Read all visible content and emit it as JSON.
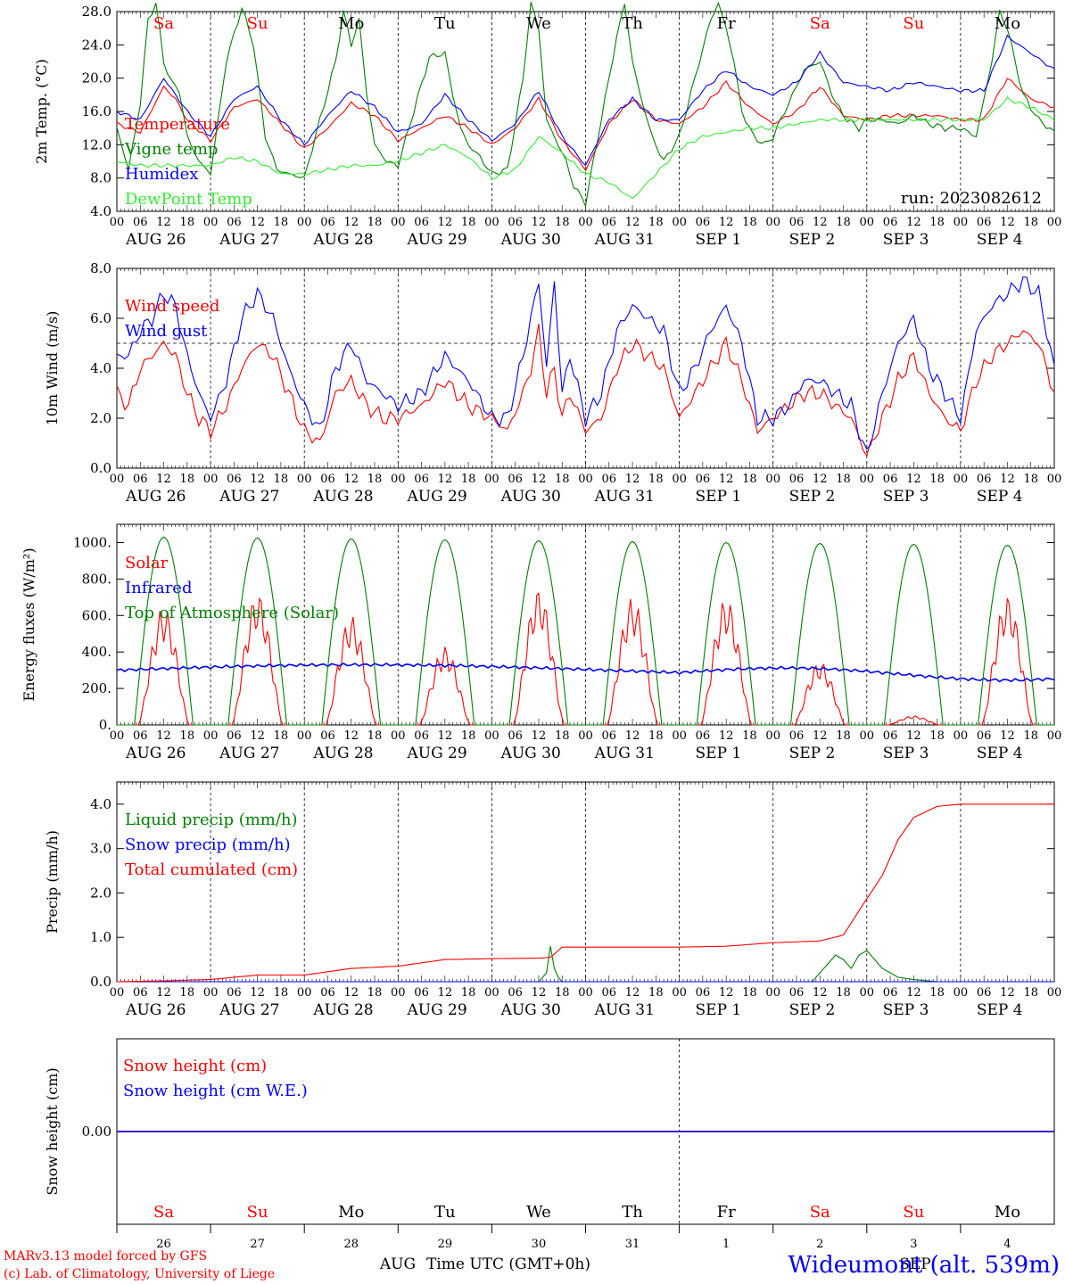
{
  "chart_data": [
    {
      "type": "line",
      "ylabel": "2m Temp. (°C)",
      "ylim": [
        4.0,
        28.0
      ],
      "yticks": [
        "28.0",
        "24.0",
        "20.0",
        "16.0",
        "12.0",
        "8.0",
        "4.0"
      ],
      "annotation": "run: 2023082612",
      "day_names": [
        "Sa",
        "Su",
        "Mo",
        "Tu",
        "We",
        "Th",
        "Fr",
        "Sa",
        "Su",
        "Mo"
      ],
      "series": [
        {
          "name": "Temperature",
          "color": "#ff0000",
          "x": [
            0,
            6,
            12,
            15,
            18,
            24,
            30,
            36,
            42,
            48,
            54,
            60,
            66,
            72,
            78,
            84,
            90,
            96,
            102,
            108,
            114,
            120,
            126,
            132,
            138,
            144,
            150,
            156,
            162,
            168,
            174,
            180,
            186,
            192,
            198,
            204,
            210,
            216,
            222,
            228,
            234,
            240
          ],
          "y": [
            14.5,
            13.5,
            19.0,
            17.5,
            15.0,
            12.5,
            16.5,
            17.5,
            14.5,
            11.5,
            14.0,
            17.0,
            15.5,
            12.5,
            14.0,
            15.5,
            14.0,
            12.0,
            14.0,
            17.5,
            12.5,
            9.0,
            14.5,
            17.5,
            15.0,
            14.5,
            16.5,
            19.5,
            16.5,
            14.5,
            16.0,
            19.0,
            15.5,
            15.0,
            15.5,
            15.5,
            15.5,
            15.0,
            15.0,
            20.0,
            17.5,
            16.5
          ]
        },
        {
          "name": "Vigne temp",
          "color": "#008000",
          "x": [
            0,
            3,
            6,
            8,
            10,
            12,
            14,
            16,
            18,
            21,
            24,
            28,
            32,
            35,
            38,
            41,
            44,
            48,
            52,
            56,
            58,
            60,
            62,
            64,
            66,
            69,
            72,
            76,
            80,
            84,
            86,
            88,
            90,
            93,
            96,
            100,
            104,
            106,
            108,
            110,
            112,
            115,
            117,
            120,
            124,
            128,
            130,
            132,
            134,
            137,
            140,
            144,
            148,
            152,
            154,
            156,
            158,
            160,
            163,
            166,
            168,
            172,
            176,
            180,
            184,
            187,
            190,
            192,
            196,
            200,
            204,
            208,
            212,
            216,
            220,
            224,
            226,
            228,
            232,
            236,
            240
          ],
          "y": [
            14.0,
            9.0,
            17.0,
            27.0,
            29.0,
            22.0,
            19.5,
            18.5,
            13.0,
            10.0,
            8.5,
            22.0,
            28.5,
            24.0,
            13.0,
            9.0,
            8.5,
            8.0,
            15.0,
            22.0,
            28.0,
            24.0,
            27.0,
            18.0,
            12.0,
            10.0,
            9.5,
            16.0,
            22.5,
            23.0,
            18.0,
            14.0,
            12.0,
            10.5,
            8.5,
            9.0,
            20.0,
            29.0,
            26.0,
            15.0,
            13.0,
            10.0,
            7.0,
            5.0,
            15.0,
            25.0,
            29.0,
            22.0,
            18.0,
            13.0,
            10.0,
            13.0,
            20.0,
            27.0,
            29.0,
            26.0,
            22.0,
            16.0,
            13.0,
            12.0,
            13.0,
            17.0,
            21.0,
            22.0,
            17.0,
            15.0,
            14.0,
            15.0,
            15.0,
            14.5,
            15.5,
            14.5,
            14.0,
            14.0,
            13.0,
            22.0,
            28.0,
            26.0,
            18.0,
            15.0,
            13.5
          ]
        },
        {
          "name": "Humidex",
          "color": "#0000ff",
          "x": [
            0,
            6,
            12,
            15,
            18,
            24,
            30,
            36,
            42,
            48,
            54,
            60,
            66,
            72,
            78,
            84,
            90,
            96,
            102,
            108,
            114,
            120,
            126,
            132,
            138,
            144,
            150,
            156,
            162,
            168,
            174,
            180,
            186,
            192,
            198,
            204,
            210,
            216,
            222,
            228,
            234,
            240
          ],
          "y": [
            16.0,
            15.0,
            20.0,
            18.0,
            16.0,
            13.0,
            17.5,
            19.0,
            15.0,
            12.0,
            15.5,
            18.5,
            16.5,
            13.5,
            14.5,
            18.0,
            15.0,
            12.5,
            14.5,
            18.5,
            13.0,
            9.5,
            15.0,
            17.5,
            15.0,
            15.0,
            18.5,
            21.0,
            19.0,
            18.0,
            19.5,
            23.0,
            19.5,
            19.0,
            18.5,
            19.5,
            19.0,
            18.5,
            18.5,
            25.0,
            23.0,
            21.0
          ]
        },
        {
          "name": "DewPoint Temp",
          "color": "#33ee33",
          "x": [
            0,
            6,
            12,
            18,
            24,
            30,
            36,
            42,
            48,
            54,
            60,
            66,
            72,
            78,
            84,
            90,
            96,
            102,
            108,
            114,
            120,
            126,
            132,
            138,
            144,
            150,
            156,
            162,
            168,
            174,
            180,
            186,
            192,
            198,
            204,
            210,
            216,
            222,
            228,
            234,
            240
          ],
          "y": [
            10.0,
            9.5,
            9.5,
            9.5,
            9.5,
            10.5,
            10.0,
            8.5,
            8.5,
            9.0,
            9.5,
            9.5,
            10.0,
            11.0,
            12.0,
            10.5,
            8.0,
            9.0,
            13.0,
            11.0,
            8.5,
            7.5,
            5.5,
            8.5,
            11.5,
            13.0,
            13.5,
            14.0,
            14.0,
            14.5,
            15.0,
            15.0,
            15.0,
            15.0,
            15.0,
            15.0,
            15.0,
            15.0,
            17.5,
            16.5,
            15.0
          ]
        }
      ]
    },
    {
      "type": "line",
      "ylabel": "10m Wind (m/s)",
      "ylim": [
        0.0,
        8.0
      ],
      "yticks": [
        "8.0",
        "6.0",
        "4.0",
        "2.0",
        "0.0"
      ],
      "reference_line": 5.0,
      "series": [
        {
          "name": "Wind speed",
          "color": "#ff0000",
          "x": [
            0,
            3,
            6,
            9,
            12,
            15,
            18,
            21,
            24,
            28,
            32,
            36,
            40,
            44,
            48,
            52,
            56,
            60,
            64,
            68,
            72,
            78,
            84,
            90,
            96,
            100,
            104,
            106,
            108,
            110,
            112,
            114,
            116,
            120,
            124,
            128,
            132,
            136,
            140,
            144,
            148,
            152,
            156,
            160,
            164,
            168,
            172,
            176,
            180,
            184,
            188,
            192,
            196,
            200,
            204,
            208,
            212,
            216,
            220,
            224,
            228,
            232,
            236,
            240
          ],
          "y": [
            3.0,
            2.5,
            4.0,
            4.5,
            5.0,
            4.5,
            3.0,
            2.0,
            1.5,
            2.5,
            4.0,
            5.0,
            4.5,
            3.0,
            1.5,
            1.0,
            3.0,
            3.5,
            2.5,
            2.0,
            2.0,
            2.5,
            3.5,
            2.5,
            2.0,
            1.5,
            3.0,
            4.0,
            5.5,
            3.0,
            4.0,
            2.0,
            3.0,
            1.5,
            2.0,
            4.0,
            5.0,
            4.5,
            4.0,
            2.0,
            3.0,
            4.0,
            5.0,
            3.5,
            1.5,
            2.0,
            2.5,
            3.0,
            3.0,
            2.5,
            2.0,
            0.5,
            2.0,
            3.5,
            4.5,
            3.0,
            2.0,
            1.5,
            3.5,
            4.5,
            5.0,
            5.5,
            5.0,
            3.0
          ]
        },
        {
          "name": "Wind gust",
          "color": "#0000ff",
          "x": [
            0,
            3,
            6,
            9,
            12,
            15,
            18,
            21,
            24,
            28,
            32,
            36,
            40,
            44,
            48,
            52,
            56,
            60,
            64,
            68,
            72,
            78,
            84,
            90,
            96,
            100,
            104,
            106,
            108,
            110,
            112,
            114,
            116,
            120,
            124,
            128,
            132,
            136,
            140,
            144,
            148,
            152,
            156,
            160,
            164,
            168,
            172,
            176,
            180,
            184,
            188,
            192,
            196,
            200,
            204,
            208,
            212,
            216,
            220,
            224,
            228,
            232,
            236,
            240
          ],
          "y": [
            4.5,
            4.5,
            5.5,
            6.0,
            7.0,
            6.5,
            4.5,
            3.0,
            2.0,
            3.5,
            6.0,
            7.0,
            6.0,
            4.0,
            2.5,
            1.5,
            4.0,
            5.0,
            3.5,
            3.0,
            2.5,
            3.0,
            4.5,
            3.5,
            2.0,
            2.0,
            4.5,
            6.0,
            7.5,
            4.0,
            7.5,
            3.0,
            4.5,
            2.0,
            3.0,
            5.5,
            6.5,
            6.0,
            5.5,
            3.0,
            4.0,
            5.5,
            6.5,
            5.0,
            2.0,
            2.0,
            2.5,
            3.5,
            3.5,
            3.0,
            2.5,
            0.5,
            3.0,
            5.0,
            6.0,
            4.0,
            3.0,
            2.0,
            5.5,
            6.5,
            7.0,
            7.5,
            7.0,
            4.0
          ]
        }
      ]
    },
    {
      "type": "line",
      "ylabel": "Energy fluxes (W/m²)",
      "ylim": [
        0,
        1100
      ],
      "yticks": [
        "1000.",
        "800.",
        "600.",
        "400.",
        "200.",
        "0."
      ],
      "series": [
        {
          "name": "Solar",
          "color": "#ff0000",
          "peaks": [
            650,
            730,
            600,
            430,
            750,
            700,
            700,
            350,
            50,
            710
          ]
        },
        {
          "name": "Infrared",
          "color": "#0000ff",
          "base": 300
        },
        {
          "name": "Top of Atmosphere (Solar)",
          "color": "#008000",
          "peaks": [
            1030,
            1025,
            1020,
            1015,
            1010,
            1005,
            1000,
            995,
            990,
            985
          ]
        }
      ]
    },
    {
      "type": "line",
      "ylabel": "Precip (mm/h)",
      "ylim": [
        0.0,
        4.5
      ],
      "yticks": [
        "4.0",
        "3.0",
        "2.0",
        "1.0",
        "0.0"
      ],
      "series": [
        {
          "name": "Liquid precip (mm/h)",
          "color": "#008000",
          "x": [
            0,
            100,
            108,
            110,
            111,
            112,
            113,
            114,
            118,
            150,
            178,
            180,
            182,
            184,
            186,
            188,
            190,
            192,
            194,
            196,
            198,
            200,
            204,
            210,
            240
          ],
          "y": [
            0,
            0,
            0,
            0.2,
            0.8,
            0.3,
            0.1,
            0,
            0,
            0,
            0,
            0.2,
            0.4,
            0.6,
            0.5,
            0.3,
            0.6,
            0.7,
            0.5,
            0.3,
            0.2,
            0.1,
            0.05,
            0,
            0
          ]
        },
        {
          "name": "Snow precip (mm/h)",
          "color": "#0000ff",
          "x": [
            0,
            240
          ],
          "y": [
            0,
            0
          ]
        },
        {
          "name": "Total cumulated (cm)",
          "color": "#ff0000",
          "x": [
            0,
            12,
            24,
            36,
            48,
            60,
            72,
            84,
            96,
            108,
            111,
            114,
            132,
            144,
            156,
            168,
            180,
            186,
            190,
            196,
            200,
            204,
            210,
            216,
            240
          ],
          "y": [
            0,
            0.02,
            0.05,
            0.15,
            0.15,
            0.3,
            0.35,
            0.5,
            0.52,
            0.53,
            0.55,
            0.78,
            0.78,
            0.78,
            0.8,
            0.88,
            0.92,
            1.05,
            1.6,
            2.4,
            3.2,
            3.7,
            3.95,
            4.0,
            4.0
          ]
        }
      ]
    },
    {
      "type": "line",
      "ylabel": "Snow height (cm)",
      "yticks": [
        "0.00"
      ],
      "series": [
        {
          "name": "Snow height (cm)",
          "color": "#ff0000",
          "x": [
            0,
            240
          ],
          "y": [
            0,
            0
          ]
        },
        {
          "name": "Snow height (cm W.E.)",
          "color": "#0000ff",
          "x": [
            0,
            240
          ],
          "y": [
            0,
            0
          ]
        }
      ],
      "day_names": [
        "Sa",
        "Su",
        "Mo",
        "Tu",
        "We",
        "Th",
        "Fr",
        "Sa",
        "Su",
        "Mo"
      ],
      "day_numbers": [
        "26",
        "27",
        "28",
        "29",
        "30",
        "31",
        "1",
        "2",
        "3",
        "4"
      ],
      "month_labels": [
        "AUG",
        "SEP"
      ],
      "xlabel": "Time UTC (GMT+0h)"
    }
  ],
  "x_axis": {
    "hour_labels": [
      "00",
      "06",
      "12",
      "18"
    ],
    "date_labels": [
      "AUG 26",
      "AUG 27",
      "AUG 28",
      "AUG 29",
      "AUG 30",
      "AUG 31",
      "SEP  1",
      "SEP  2",
      "SEP  3",
      "SEP  4"
    ]
  },
  "weekend_color": "#ff0000",
  "weekday_color": "#000000",
  "footer": {
    "credit_line1": "MARv3.13 model forced by GFS",
    "credit_line2": "(c) Lab. of Climatology, University of Liege",
    "station": "Wideumont (alt. 539m)"
  }
}
